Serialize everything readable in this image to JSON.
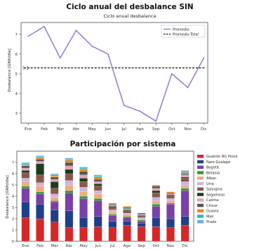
{
  "chart_data": [
    {
      "type": "line",
      "title": "Ciclo anual del desbalance SIN",
      "subtitle": "Ciclo anual desbalance",
      "xlabel": "",
      "ylabel": "Desbalance [GWh/día]",
      "categories": [
        "Ene",
        "Feb",
        "Mar",
        "Abr",
        "May",
        "Jun",
        "Jul",
        "Ago",
        "Sep",
        "Oct",
        "Nov",
        "Dic"
      ],
      "series": [
        {
          "name": "Promedio",
          "values": [
            6.9,
            7.4,
            5.8,
            7.2,
            6.4,
            6.0,
            3.4,
            3.1,
            2.6,
            5.0,
            4.3,
            5.8
          ],
          "color": "#8b7fd0"
        },
        {
          "name": "Promedio Total",
          "constant": 5.3,
          "color": "#111111",
          "style": "dashed"
        }
      ],
      "ylim": [
        2.5,
        7.6
      ],
      "yticks": [
        3,
        4,
        5,
        6,
        7
      ],
      "annotation": "5.3",
      "grid": false,
      "legend": "top-right"
    },
    {
      "type": "bar",
      "stacked": true,
      "title": "Participación por sistema",
      "xlabel": "",
      "ylabel": "Desbalance [GWh/día]",
      "categories": [
        "Ene",
        "Feb",
        "Mar",
        "Abr",
        "May",
        "Jun",
        "Jul",
        "Ago",
        "Sep",
        "Oct",
        "Nov",
        "Dic"
      ],
      "ylim": [
        0,
        8
      ],
      "yticks": [
        0,
        1,
        2,
        3,
        4,
        5,
        6,
        7
      ],
      "legend": "right",
      "series": [
        {
          "name": "Guatrón RG Porce",
          "color": "#d62728",
          "values": [
            2.1,
            2.0,
            1.7,
            1.2,
            1.2,
            1.3,
            1.2,
            1.4,
            1.3,
            1.3,
            1.2,
            1.4
          ]
        },
        {
          "name": "Naro Gualapé",
          "color": "#1f3f8a",
          "values": [
            1.4,
            1.3,
            1.1,
            1.5,
            0.9,
            0.9,
            0.6,
            0.4,
            0.3,
            0.8,
            0.8,
            0.8
          ]
        },
        {
          "name": "Bogotá",
          "color": "#7b3fa8",
          "values": [
            1.2,
            0.9,
            0.7,
            1.6,
            1.7,
            1.4,
            0.5,
            0.3,
            0.2,
            1.0,
            1.3,
            2.3
          ]
        },
        {
          "name": "Betania",
          "color": "#2ca02c",
          "values": [
            0.2,
            0.2,
            0.1,
            0.2,
            0.2,
            0.2,
            0.1,
            0.1,
            0.1,
            0.2,
            0.1,
            0.2
          ]
        },
        {
          "name": "Alban",
          "color": "#f5a97a",
          "values": [
            0.4,
            0.5,
            0.3,
            0.5,
            0.4,
            0.4,
            0.2,
            0.2,
            0.1,
            0.3,
            0.2,
            0.3
          ]
        },
        {
          "name": "Urra",
          "color": "#c9b6e4",
          "values": [
            0.3,
            0.3,
            0.3,
            0.4,
            0.4,
            0.3,
            0.2,
            0.1,
            0.1,
            0.3,
            0.2,
            0.3
          ]
        },
        {
          "name": "Salvajina",
          "color": "#8c564b",
          "values": [
            0.5,
            0.7,
            0.5,
            0.6,
            0.5,
            0.4,
            0.2,
            0.2,
            0.1,
            0.4,
            0.2,
            0.3
          ]
        },
        {
          "name": "Sogamoso",
          "color": "#1a3d1a",
          "values": [
            0.2,
            1.0,
            0.6,
            0.4,
            0.3,
            0.2,
            0.1,
            0.1,
            0.1,
            0.2,
            0.1,
            0.1
          ]
        },
        {
          "name": "Calima",
          "color": "#e8a0b8",
          "values": [
            0.2,
            0.2,
            0.2,
            0.3,
            0.3,
            0.2,
            0.1,
            0.1,
            0.1,
            0.2,
            0.1,
            0.2
          ]
        },
        {
          "name": "Chivor",
          "color": "#555555",
          "values": [
            0.2,
            0.2,
            0.2,
            0.3,
            0.3,
            0.2,
            0.1,
            0.1,
            0.1,
            0.2,
            0.1,
            0.1
          ]
        },
        {
          "name": "Guavio",
          "color": "#ff7f0e",
          "values": [
            0.1,
            0.1,
            0.1,
            0.2,
            0.2,
            0.2,
            0.1,
            0.1,
            0.0,
            0.1,
            0.1,
            0.1
          ]
        },
        {
          "name": "Miel",
          "color": "#17becf",
          "values": [
            0.1,
            0.1,
            0.1,
            0.1,
            0.1,
            0.1,
            0.0,
            0.0,
            0.0,
            0.0,
            0.0,
            0.1
          ]
        },
        {
          "name": "Prado",
          "color": "#6baed6",
          "values": [
            0.1,
            0.1,
            0.1,
            0.1,
            0.1,
            0.1,
            0.0,
            0.0,
            0.0,
            0.0,
            0.0,
            0.1
          ]
        }
      ]
    }
  ]
}
